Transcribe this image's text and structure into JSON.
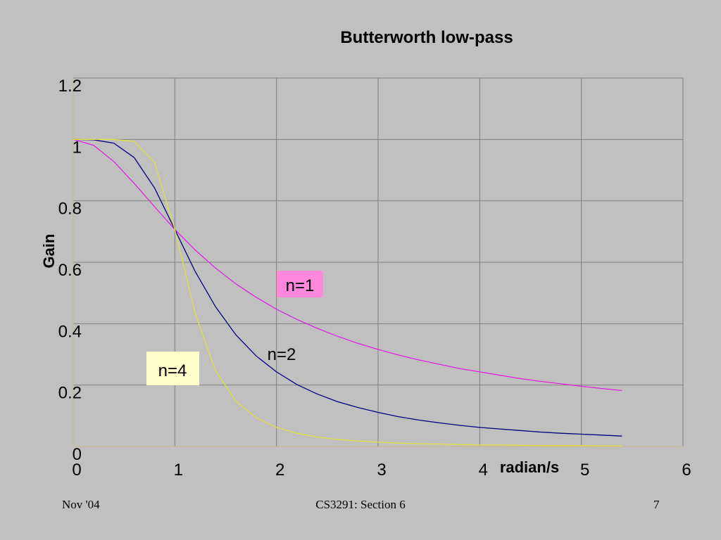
{
  "chart_data": {
    "type": "line",
    "title": "Butterworth low-pass",
    "xlabel": "radian/s",
    "ylabel": "Gain",
    "xlim": [
      0,
      6
    ],
    "ylim": [
      0,
      1.2
    ],
    "xticks": [
      "0",
      "1",
      "2",
      "3",
      "4",
      "5",
      "6"
    ],
    "yticks": [
      "0",
      "0.2",
      "0.4",
      "0.6",
      "0.8",
      "1",
      "1.2"
    ],
    "grid": true,
    "series": [
      {
        "name": "n=1",
        "color": "#e020e0",
        "x": [
          0,
          0.2,
          0.4,
          0.6,
          0.8,
          1.0,
          1.2,
          1.4,
          1.6,
          1.8,
          2.0,
          2.2,
          2.4,
          2.6,
          2.8,
          3.0,
          3.2,
          3.4,
          3.6,
          3.8,
          4.0,
          4.2,
          4.4,
          4.6,
          4.8,
          5.0,
          5.2,
          5.4
        ],
        "y": [
          1.0,
          0.981,
          0.928,
          0.857,
          0.781,
          0.707,
          0.64,
          0.581,
          0.53,
          0.486,
          0.447,
          0.414,
          0.385,
          0.359,
          0.336,
          0.316,
          0.298,
          0.282,
          0.268,
          0.254,
          0.243,
          0.232,
          0.221,
          0.212,
          0.204,
          0.196,
          0.189,
          0.182
        ]
      },
      {
        "name": "n=2",
        "color": "#000080",
        "x": [
          0,
          0.2,
          0.4,
          0.6,
          0.8,
          1.0,
          1.2,
          1.4,
          1.6,
          1.8,
          2.0,
          2.2,
          2.4,
          2.6,
          2.8,
          3.0,
          3.2,
          3.4,
          3.6,
          3.8,
          4.0,
          4.2,
          4.4,
          4.6,
          4.8,
          5.0,
          5.2,
          5.4
        ],
        "y": [
          1.0,
          0.999,
          0.988,
          0.941,
          0.842,
          0.707,
          0.57,
          0.455,
          0.364,
          0.295,
          0.243,
          0.202,
          0.171,
          0.146,
          0.127,
          0.111,
          0.097,
          0.086,
          0.077,
          0.069,
          0.062,
          0.057,
          0.052,
          0.047,
          0.043,
          0.04,
          0.037,
          0.034
        ]
      },
      {
        "name": "n=4",
        "color": "#e0e040",
        "x": [
          0,
          0.2,
          0.4,
          0.6,
          0.8,
          1.0,
          1.2,
          1.4,
          1.6,
          1.8,
          2.0,
          2.2,
          2.4,
          2.6,
          2.8,
          3.0,
          3.2,
          3.4,
          3.6,
          3.8,
          4.0,
          4.2,
          4.4,
          4.6,
          4.8,
          5.0,
          5.2,
          5.4
        ],
        "y": [
          1.0,
          1.0,
          1.0,
          0.994,
          0.925,
          0.707,
          0.434,
          0.247,
          0.148,
          0.094,
          0.062,
          0.043,
          0.031,
          0.023,
          0.018,
          0.014,
          0.011,
          0.009,
          0.008,
          0.006,
          0.005,
          0.005,
          0.004,
          0.003,
          0.003,
          0.003,
          0.002,
          0.002
        ]
      }
    ],
    "annotations": [
      {
        "text": "n=1",
        "x": 2.2,
        "y": 0.53,
        "box_color": "#ff88dd"
      },
      {
        "text": "n=2",
        "x": 1.9,
        "y": 0.31,
        "box_color": ""
      },
      {
        "text": "n=4",
        "x": 0.0,
        "y": 0.255,
        "box_color": "#ffffcc"
      }
    ]
  },
  "footer": {
    "left": "Nov '04",
    "center": "CS3291: Section 6",
    "right": "7"
  }
}
